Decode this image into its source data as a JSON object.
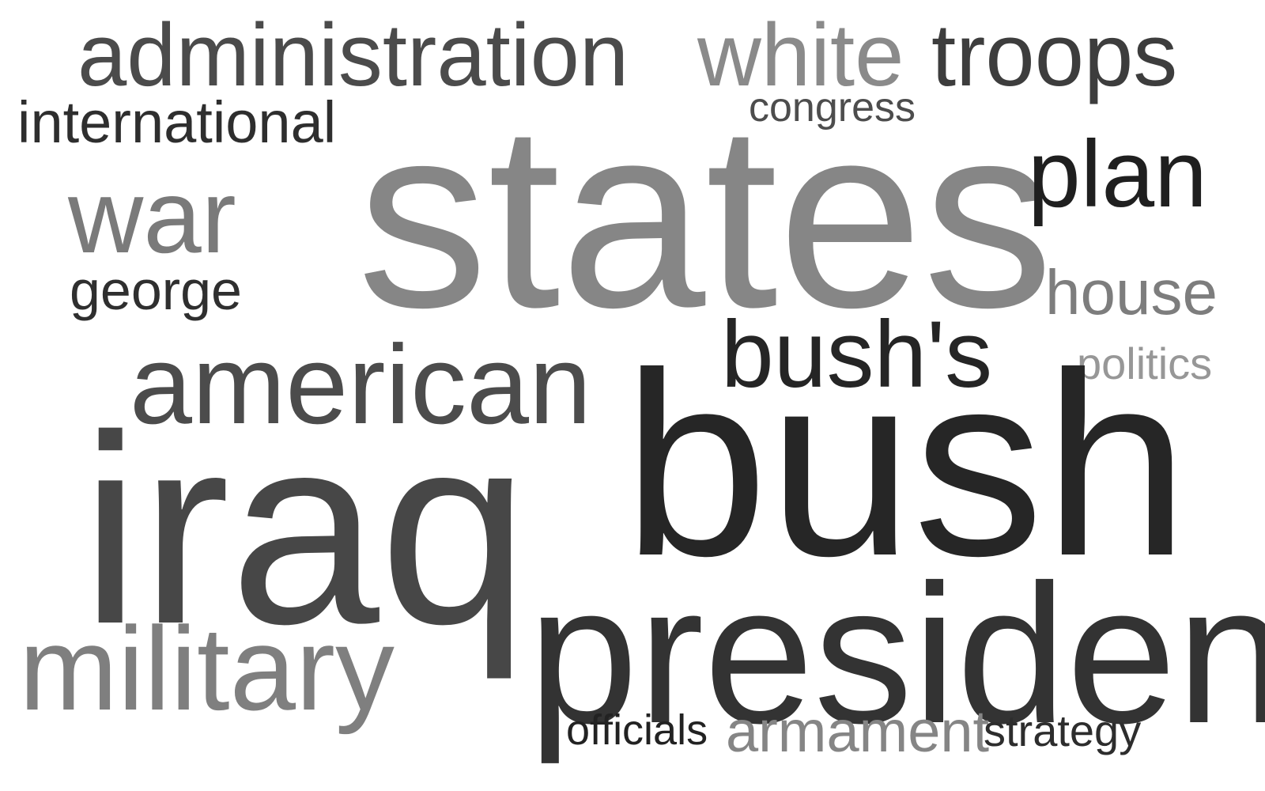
{
  "word_cloud": {
    "words": [
      {
        "text": "administration",
        "color": "#4b4b4b"
      },
      {
        "text": "white",
        "color": "#8a8a8a"
      },
      {
        "text": "troops",
        "color": "#3d3d3d"
      },
      {
        "text": "congress",
        "color": "#4d4d4d"
      },
      {
        "text": "international",
        "color": "#2e2e2e"
      },
      {
        "text": "states",
        "color": "#868686"
      },
      {
        "text": "plan",
        "color": "#1f1f1f"
      },
      {
        "text": "war",
        "color": "#7a7a7a"
      },
      {
        "text": "george",
        "color": "#2f2f2f"
      },
      {
        "text": "house",
        "color": "#7d7d7d"
      },
      {
        "text": "bush's",
        "color": "#252525"
      },
      {
        "text": "politics",
        "color": "#979797"
      },
      {
        "text": "american",
        "color": "#4c4c4c"
      },
      {
        "text": "bush",
        "color": "#262626"
      },
      {
        "text": "iraq",
        "color": "#474747"
      },
      {
        "text": "president",
        "color": "#333333"
      },
      {
        "text": "military",
        "color": "#7f7f7f"
      },
      {
        "text": "officials",
        "color": "#222222"
      },
      {
        "text": "armament",
        "color": "#858585"
      },
      {
        "text": "strategy",
        "color": "#2d2d2d"
      }
    ]
  }
}
